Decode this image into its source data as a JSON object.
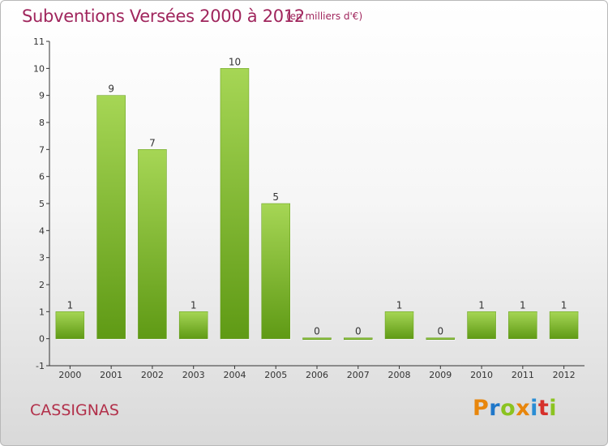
{
  "chart_data": {
    "type": "bar",
    "title": "Subventions Versées 2000 à 2012",
    "subtitle": "(en milliers d'€)",
    "categories": [
      "2000",
      "2001",
      "2002",
      "2003",
      "2004",
      "2005",
      "2006",
      "2007",
      "2008",
      "2009",
      "2010",
      "2011",
      "2012"
    ],
    "values": [
      1,
      9,
      7,
      1,
      10,
      5,
      0,
      0,
      1,
      0,
      1,
      1,
      1
    ],
    "value_labels": [
      "1",
      "9",
      "7",
      "1",
      "10",
      "5",
      "0",
      "0",
      "1",
      "0",
      "1",
      "1",
      "1"
    ],
    "ylim": [
      -1,
      11
    ],
    "yticks": [
      "-1",
      "0",
      "1",
      "2",
      "3",
      "4",
      "5",
      "6",
      "7",
      "8",
      "9",
      "10",
      "11"
    ],
    "grid": false,
    "bar_color": "#7fba2b",
    "bar_color_light": "#a6d655",
    "bar_color_dark": "#5f9a15"
  },
  "footer": {
    "commune": "CASSIGNAS",
    "logo_text": "Proxiti",
    "logo_colors": [
      "#e8860c",
      "#1f77c9",
      "#8bc320",
      "#e8860c",
      "#2a8dd4",
      "#d6302b",
      "#8bc320"
    ]
  },
  "colors": {
    "title": "#a0265d",
    "commune": "#b2304a",
    "axis": "#333333",
    "text": "#333333"
  }
}
